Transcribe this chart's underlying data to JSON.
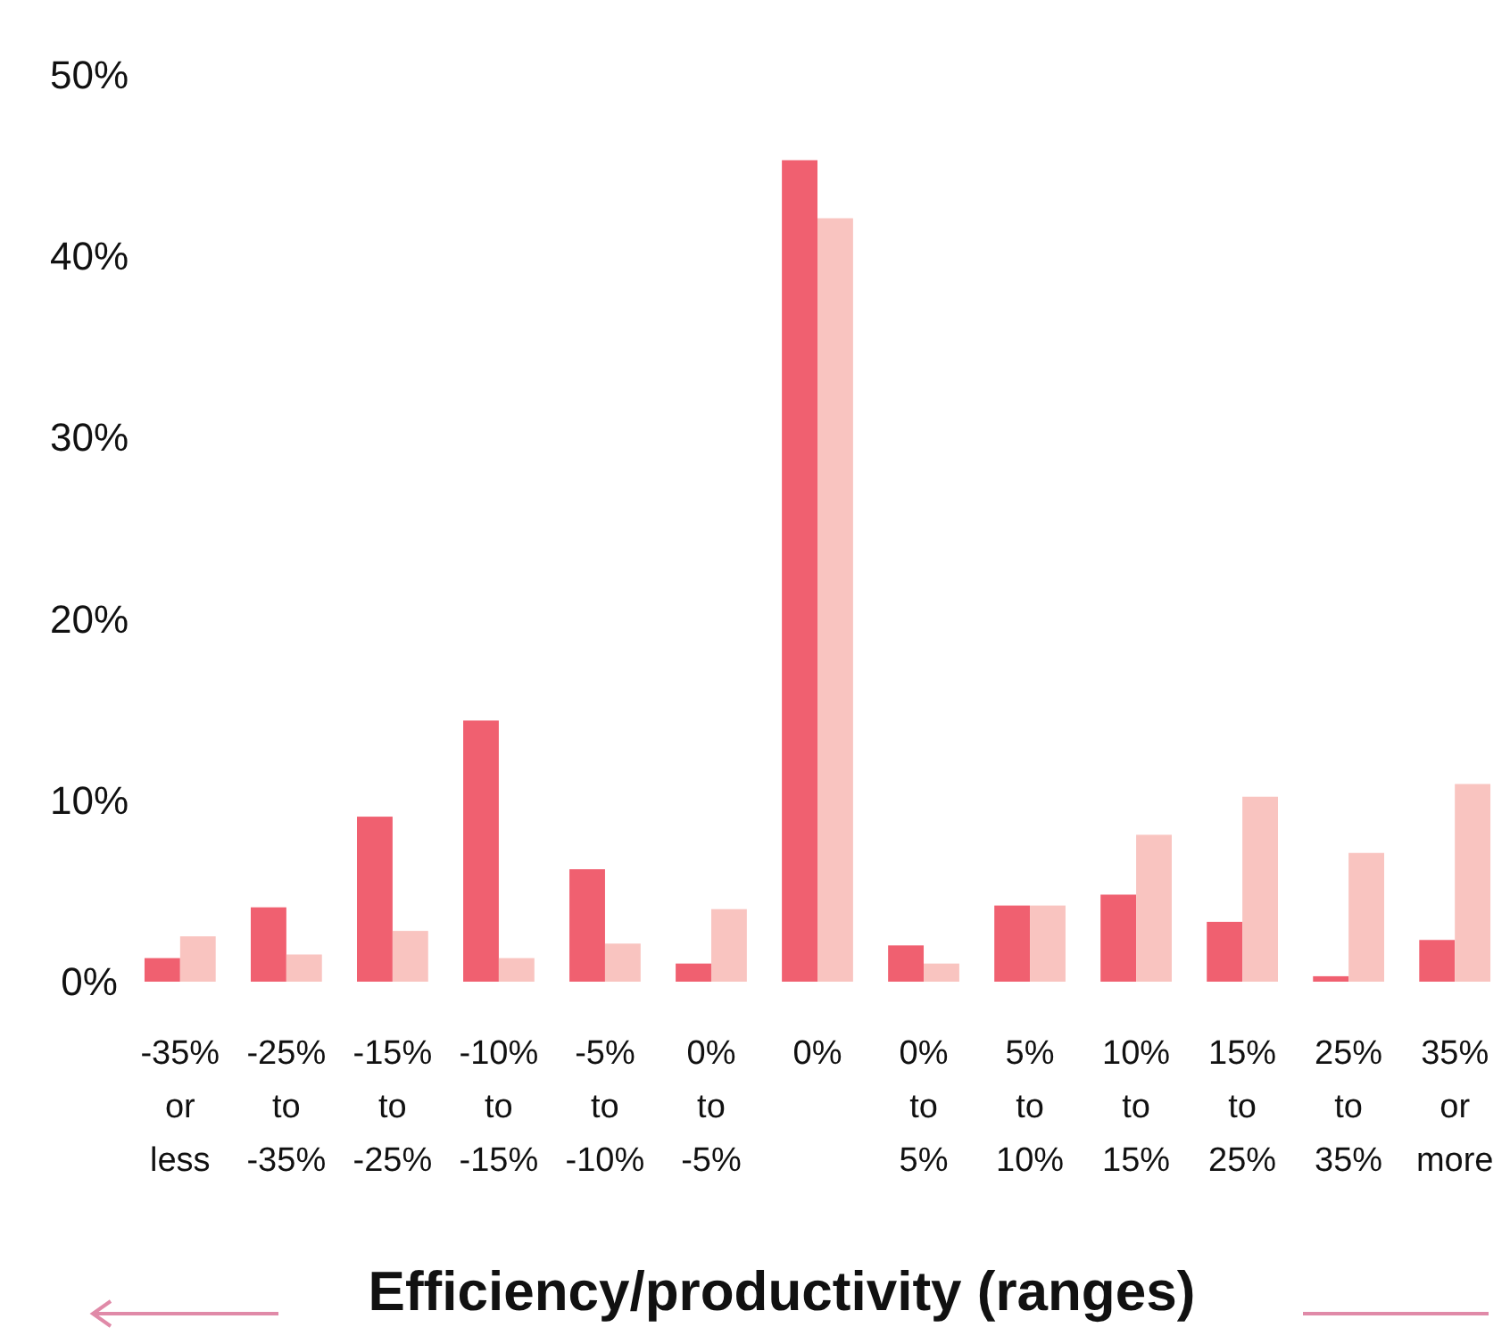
{
  "chart_data": {
    "type": "bar",
    "xlabel": "Efficiency/productivity (ranges)",
    "categories": [
      "-35%\nor\nless",
      "-25%\nto\n-35%",
      "-15%\nto\n-25%",
      "-10%\nto\n-15%",
      "-5%\nto\n-10%",
      "0%\nto\n-5%",
      "0%",
      "0%\nto\n5%",
      "5%\nto\n10%",
      "10%\nto\n15%",
      "15%\nto\n25%",
      "25%\nto\n35%",
      "35%\nor\nmore"
    ],
    "series": [
      {
        "color": "#f06070",
        "values": [
          1.3,
          4.1,
          9.1,
          14.4,
          6.2,
          1.0,
          45.3,
          2.0,
          4.2,
          4.8,
          3.3,
          0.3,
          2.3
        ]
      },
      {
        "color": "#f9c4c0",
        "values": [
          2.5,
          1.5,
          2.8,
          1.3,
          2.1,
          4.0,
          42.1,
          1.0,
          4.2,
          8.1,
          10.2,
          7.1,
          10.9
        ]
      }
    ],
    "ylim": [
      0,
      50
    ],
    "yticks": [
      {
        "value": 0,
        "label": "0%"
      },
      {
        "value": 10,
        "label": "10%"
      },
      {
        "value": 20,
        "label": "20%"
      },
      {
        "value": 30,
        "label": "30%"
      },
      {
        "value": 40,
        "label": "40%"
      },
      {
        "value": 50,
        "label": "50%"
      }
    ]
  }
}
